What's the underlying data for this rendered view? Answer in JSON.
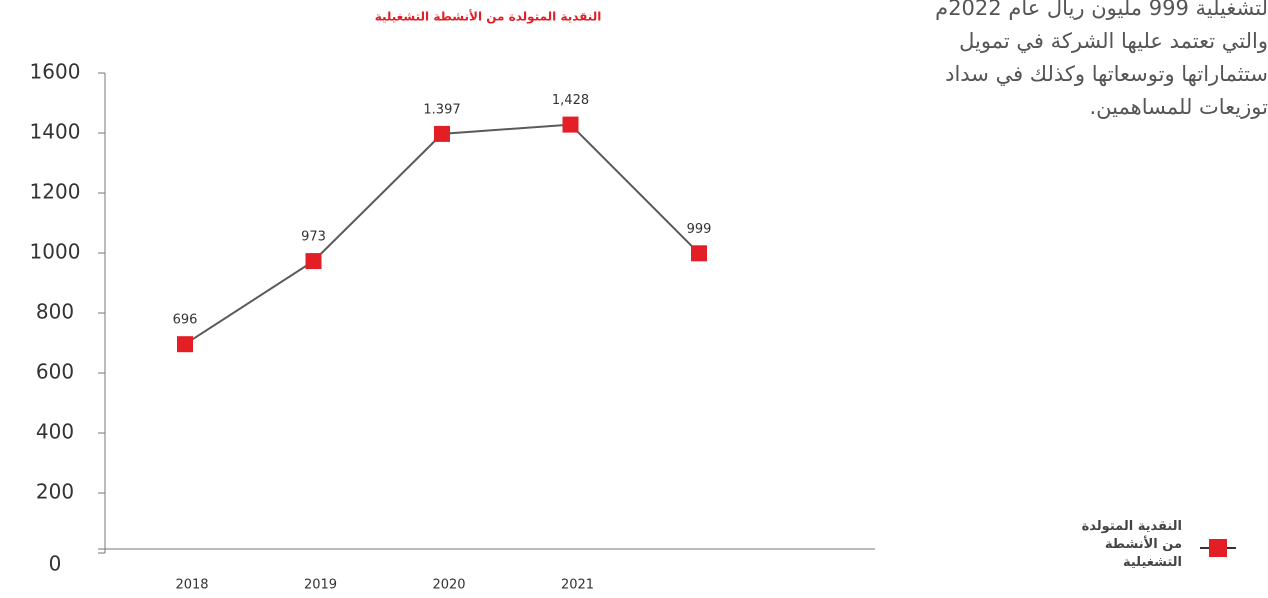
{
  "chart_data": {
    "type": "line",
    "title": "النقدية المتولدة من الأنشطة التشغيلية",
    "categories": [
      "2018",
      "2019",
      "2020",
      "2021",
      null
    ],
    "series": [
      {
        "name": "النقدية المتولدة من الأنشطة التشغيلية",
        "color": "#e31e24",
        "line_color": "#5a5a5a",
        "values": [
          696,
          973,
          1397,
          1428,
          999
        ],
        "value_labels": [
          "696",
          "973",
          "1.397",
          "1,428",
          "999"
        ]
      }
    ],
    "ylim": [
      0,
      1600
    ],
    "yticks": [
      0,
      200,
      400,
      600,
      800,
      1000,
      1200,
      1400,
      1600
    ],
    "grid": false,
    "legend": "bottom-right"
  },
  "side_text": {
    "lines": [
      "لتشغيلية 999 مليون ريال عام 2022م",
      "والتي تعتمد عليها الشركة في تمويل",
      "ستثماراتها وتوسعاتها وكذلك في سداد",
      "توزيعات للمساهمين."
    ]
  }
}
